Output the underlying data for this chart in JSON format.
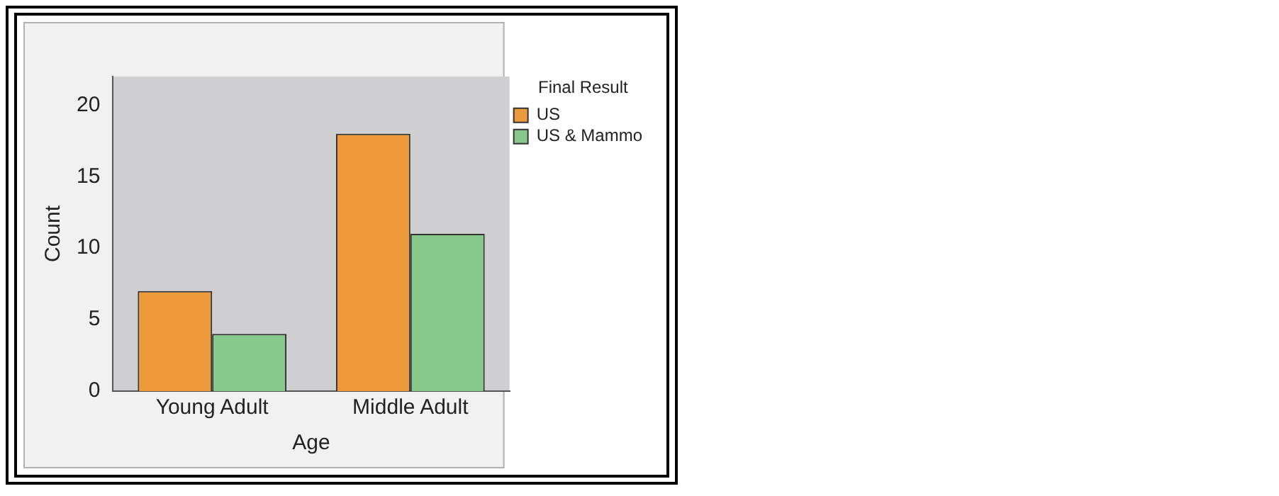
{
  "chart_data": {
    "type": "bar",
    "xlabel": "Age",
    "ylabel": "Count",
    "legend_title": "Final Result",
    "categories": [
      "Young Adult",
      "Middle Adult"
    ],
    "series": [
      {
        "name": "US",
        "color": "#ec9a3c",
        "values": [
          7,
          18
        ]
      },
      {
        "name": "US & Mammo",
        "color": "#86c98a",
        "values": [
          4,
          11
        ]
      }
    ],
    "ylim": [
      0,
      22
    ],
    "yticks": [
      0,
      5,
      10,
      15,
      20
    ],
    "grid": false,
    "legend": "top right"
  }
}
